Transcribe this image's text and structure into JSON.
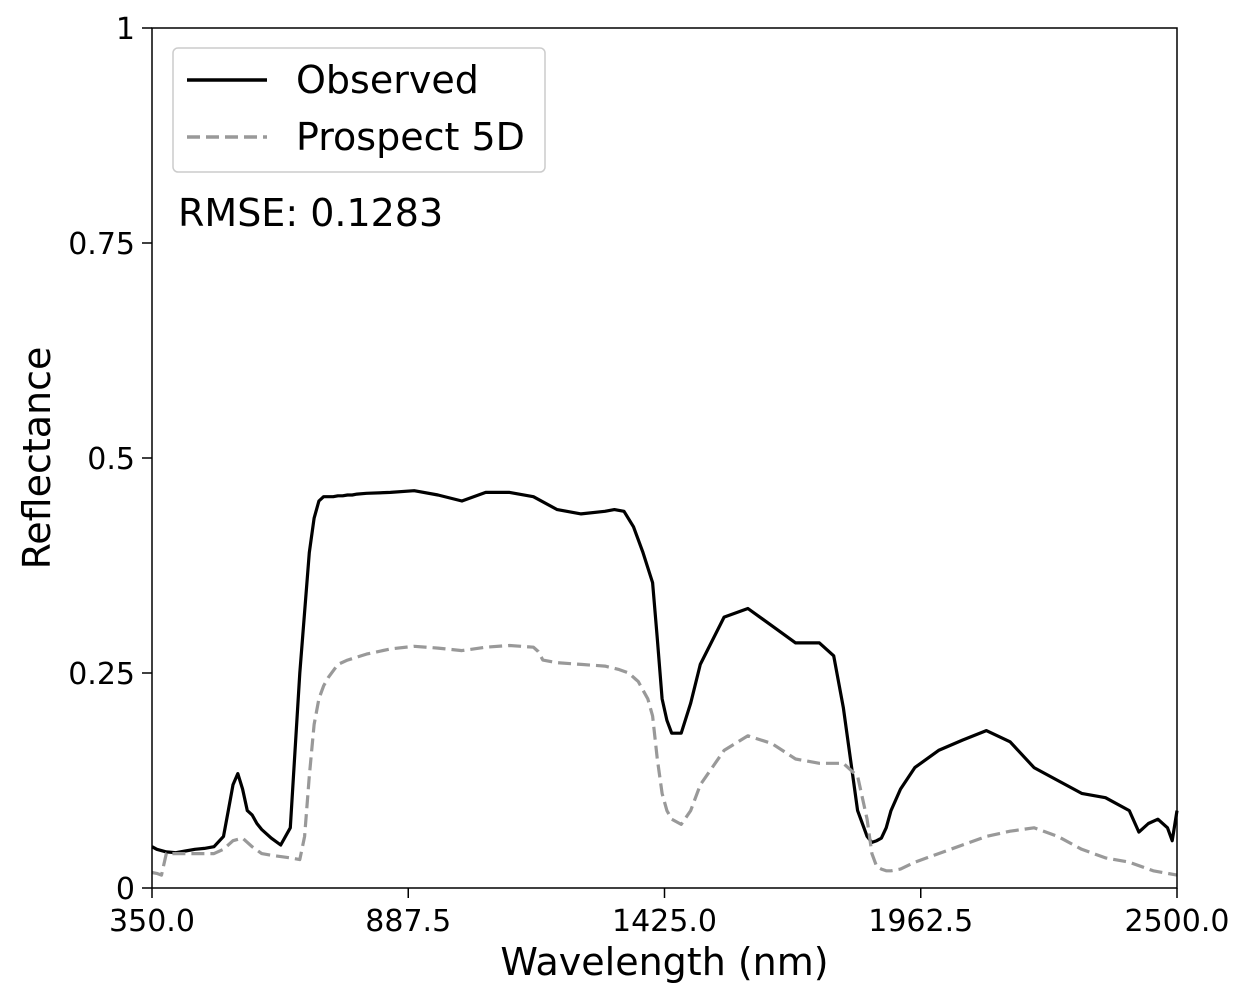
{
  "chart_data": {
    "type": "line",
    "xlabel": "Wavelength (nm)",
    "ylabel": "Reflectance",
    "xlim": [
      350.0,
      2500.0
    ],
    "ylim": [
      0,
      1
    ],
    "xticks": [
      "350.0",
      "887.5",
      "1425.0",
      "1962.5",
      "2500.0"
    ],
    "xtick_values": [
      350.0,
      887.5,
      1425.0,
      1962.5,
      2500.0
    ],
    "yticks": [
      "0",
      "0.25",
      "0.5",
      "0.75",
      "1"
    ],
    "ytick_values": [
      0,
      0.25,
      0.5,
      0.75,
      1
    ],
    "grid": false,
    "legend_position": "top-left",
    "annotation": "RMSE: 0.1283",
    "series": [
      {
        "name": "Observed",
        "color": "#000000",
        "style": "solid",
        "x": [
          350,
          360,
          380,
          400,
          420,
          440,
          460,
          480,
          500,
          510,
          520,
          530,
          540,
          550,
          560,
          570,
          580,
          600,
          620,
          640,
          660,
          680,
          690,
          700,
          710,
          720,
          730,
          740,
          750,
          760,
          770,
          780,
          800,
          850,
          900,
          950,
          1000,
          1050,
          1100,
          1150,
          1200,
          1250,
          1300,
          1320,
          1340,
          1360,
          1380,
          1400,
          1410,
          1420,
          1430,
          1440,
          1460,
          1480,
          1500,
          1550,
          1600,
          1650,
          1700,
          1750,
          1780,
          1800,
          1830,
          1850,
          1860,
          1870,
          1880,
          1890,
          1900,
          1920,
          1950,
          2000,
          2050,
          2100,
          2150,
          2200,
          2250,
          2300,
          2350,
          2400,
          2420,
          2440,
          2460,
          2480,
          2490,
          2500
        ],
        "y": [
          0.048,
          0.045,
          0.042,
          0.041,
          0.043,
          0.045,
          0.046,
          0.048,
          0.06,
          0.09,
          0.12,
          0.133,
          0.115,
          0.09,
          0.085,
          0.075,
          0.068,
          0.058,
          0.05,
          0.07,
          0.25,
          0.39,
          0.43,
          0.45,
          0.455,
          0.455,
          0.455,
          0.456,
          0.456,
          0.457,
          0.457,
          0.458,
          0.459,
          0.46,
          0.462,
          0.457,
          0.45,
          0.46,
          0.46,
          0.455,
          0.44,
          0.435,
          0.438,
          0.44,
          0.438,
          0.42,
          0.39,
          0.355,
          0.29,
          0.22,
          0.195,
          0.18,
          0.18,
          0.215,
          0.26,
          0.315,
          0.325,
          0.305,
          0.285,
          0.285,
          0.27,
          0.21,
          0.09,
          0.06,
          0.053,
          0.055,
          0.058,
          0.07,
          0.09,
          0.115,
          0.14,
          0.16,
          0.172,
          0.183,
          0.17,
          0.14,
          0.125,
          0.11,
          0.105,
          0.09,
          0.065,
          0.075,
          0.08,
          0.07,
          0.055,
          0.09
        ]
      },
      {
        "name": "Prospect 5D",
        "color": "#999999",
        "style": "dashed",
        "x": [
          350,
          360,
          370,
          380,
          400,
          420,
          440,
          460,
          480,
          500,
          520,
          540,
          560,
          580,
          600,
          640,
          660,
          670,
          680,
          690,
          700,
          710,
          720,
          740,
          760,
          800,
          850,
          900,
          950,
          1000,
          1050,
          1100,
          1150,
          1160,
          1170,
          1200,
          1250,
          1300,
          1330,
          1350,
          1370,
          1380,
          1390,
          1400,
          1410,
          1420,
          1430,
          1440,
          1460,
          1480,
          1500,
          1550,
          1600,
          1650,
          1700,
          1750,
          1800,
          1830,
          1850,
          1860,
          1870,
          1880,
          1890,
          1900,
          1920,
          1950,
          2000,
          2050,
          2100,
          2150,
          2200,
          2250,
          2300,
          2350,
          2400,
          2450,
          2500
        ],
        "y": [
          0.018,
          0.017,
          0.015,
          0.04,
          0.04,
          0.04,
          0.04,
          0.04,
          0.04,
          0.045,
          0.055,
          0.058,
          0.048,
          0.04,
          0.038,
          0.035,
          0.033,
          0.06,
          0.13,
          0.19,
          0.22,
          0.235,
          0.245,
          0.26,
          0.265,
          0.272,
          0.278,
          0.281,
          0.279,
          0.276,
          0.28,
          0.282,
          0.28,
          0.275,
          0.265,
          0.262,
          0.26,
          0.258,
          0.254,
          0.25,
          0.24,
          0.23,
          0.22,
          0.2,
          0.15,
          0.11,
          0.09,
          0.08,
          0.074,
          0.09,
          0.12,
          0.16,
          0.177,
          0.168,
          0.15,
          0.145,
          0.145,
          0.13,
          0.08,
          0.04,
          0.025,
          0.022,
          0.02,
          0.02,
          0.022,
          0.03,
          0.04,
          0.05,
          0.06,
          0.066,
          0.07,
          0.06,
          0.045,
          0.035,
          0.03,
          0.02,
          0.015
        ]
      }
    ]
  }
}
